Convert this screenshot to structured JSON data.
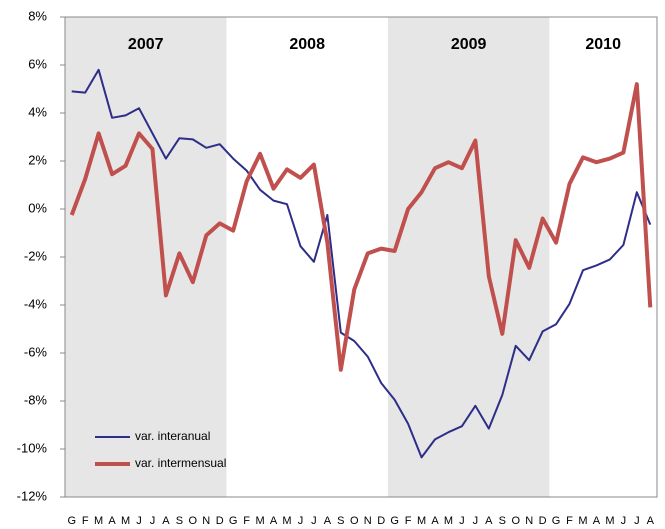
{
  "chart_data": {
    "type": "line",
    "categories": [
      "G",
      "F",
      "M",
      "A",
      "M",
      "J",
      "J",
      "A",
      "S",
      "O",
      "N",
      "D",
      "G",
      "F",
      "M",
      "A",
      "M",
      "J",
      "J",
      "A",
      "S",
      "O",
      "N",
      "D",
      "G",
      "F",
      "M",
      "A",
      "M",
      "J",
      "J",
      "A",
      "S",
      "O",
      "N",
      "D",
      "G",
      "F",
      "M",
      "A",
      "M",
      "J",
      "J",
      "A"
    ],
    "year_labels": [
      "2007",
      "2008",
      "2009",
      "2010"
    ],
    "shaded_years": [
      0,
      2
    ],
    "series": [
      {
        "name": "var. interanual",
        "color": "#2e2e8a",
        "width": 2,
        "values": [
          4.9,
          4.85,
          5.8,
          3.8,
          3.9,
          4.2,
          3.15,
          2.1,
          2.95,
          2.9,
          2.55,
          2.7,
          2.1,
          1.6,
          0.8,
          0.35,
          0.2,
          -1.55,
          -2.2,
          -0.25,
          -5.15,
          -5.5,
          -6.15,
          -7.25,
          -7.95,
          -8.95,
          -10.35,
          -9.6,
          -9.3,
          -9.05,
          -8.2,
          -9.15,
          -7.75,
          -5.7,
          -6.3,
          -5.1,
          -4.8,
          -3.95,
          -2.55,
          -2.35,
          -2.1,
          -1.5,
          0.7,
          -0.65
        ]
      },
      {
        "name": "var. intermensual",
        "color": "#c0504d",
        "width": 4,
        "values": [
          -0.25,
          1.25,
          3.15,
          1.45,
          1.8,
          3.15,
          2.5,
          -3.6,
          -1.85,
          -3.05,
          -1.1,
          -0.6,
          -0.9,
          1.15,
          2.3,
          0.85,
          1.65,
          1.3,
          1.85,
          -1.4,
          -6.7,
          -3.35,
          -1.85,
          -1.65,
          -1.75,
          0.0,
          0.7,
          1.7,
          1.95,
          1.7,
          2.85,
          -2.8,
          -5.2,
          -1.3,
          -2.45,
          -0.4,
          -1.4,
          1.05,
          2.15,
          1.95,
          2.1,
          2.35,
          5.2,
          -4.1
        ]
      }
    ],
    "ylim": [
      -12,
      8
    ],
    "yticks": [
      {
        "value": -12,
        "label": "-12%"
      },
      {
        "value": -10,
        "label": "-10%"
      },
      {
        "value": -8,
        "label": "-8%"
      },
      {
        "value": -6,
        "label": "-6%"
      },
      {
        "value": -4,
        "label": "-4%"
      },
      {
        "value": -2,
        "label": "-2%"
      },
      {
        "value": 0,
        "label": "0%"
      },
      {
        "value": 2,
        "label": "2%"
      },
      {
        "value": 4,
        "label": "4%"
      },
      {
        "value": 6,
        "label": "6%"
      },
      {
        "value": 8,
        "label": "8%"
      }
    ],
    "grid": false,
    "legend": "lower left"
  }
}
